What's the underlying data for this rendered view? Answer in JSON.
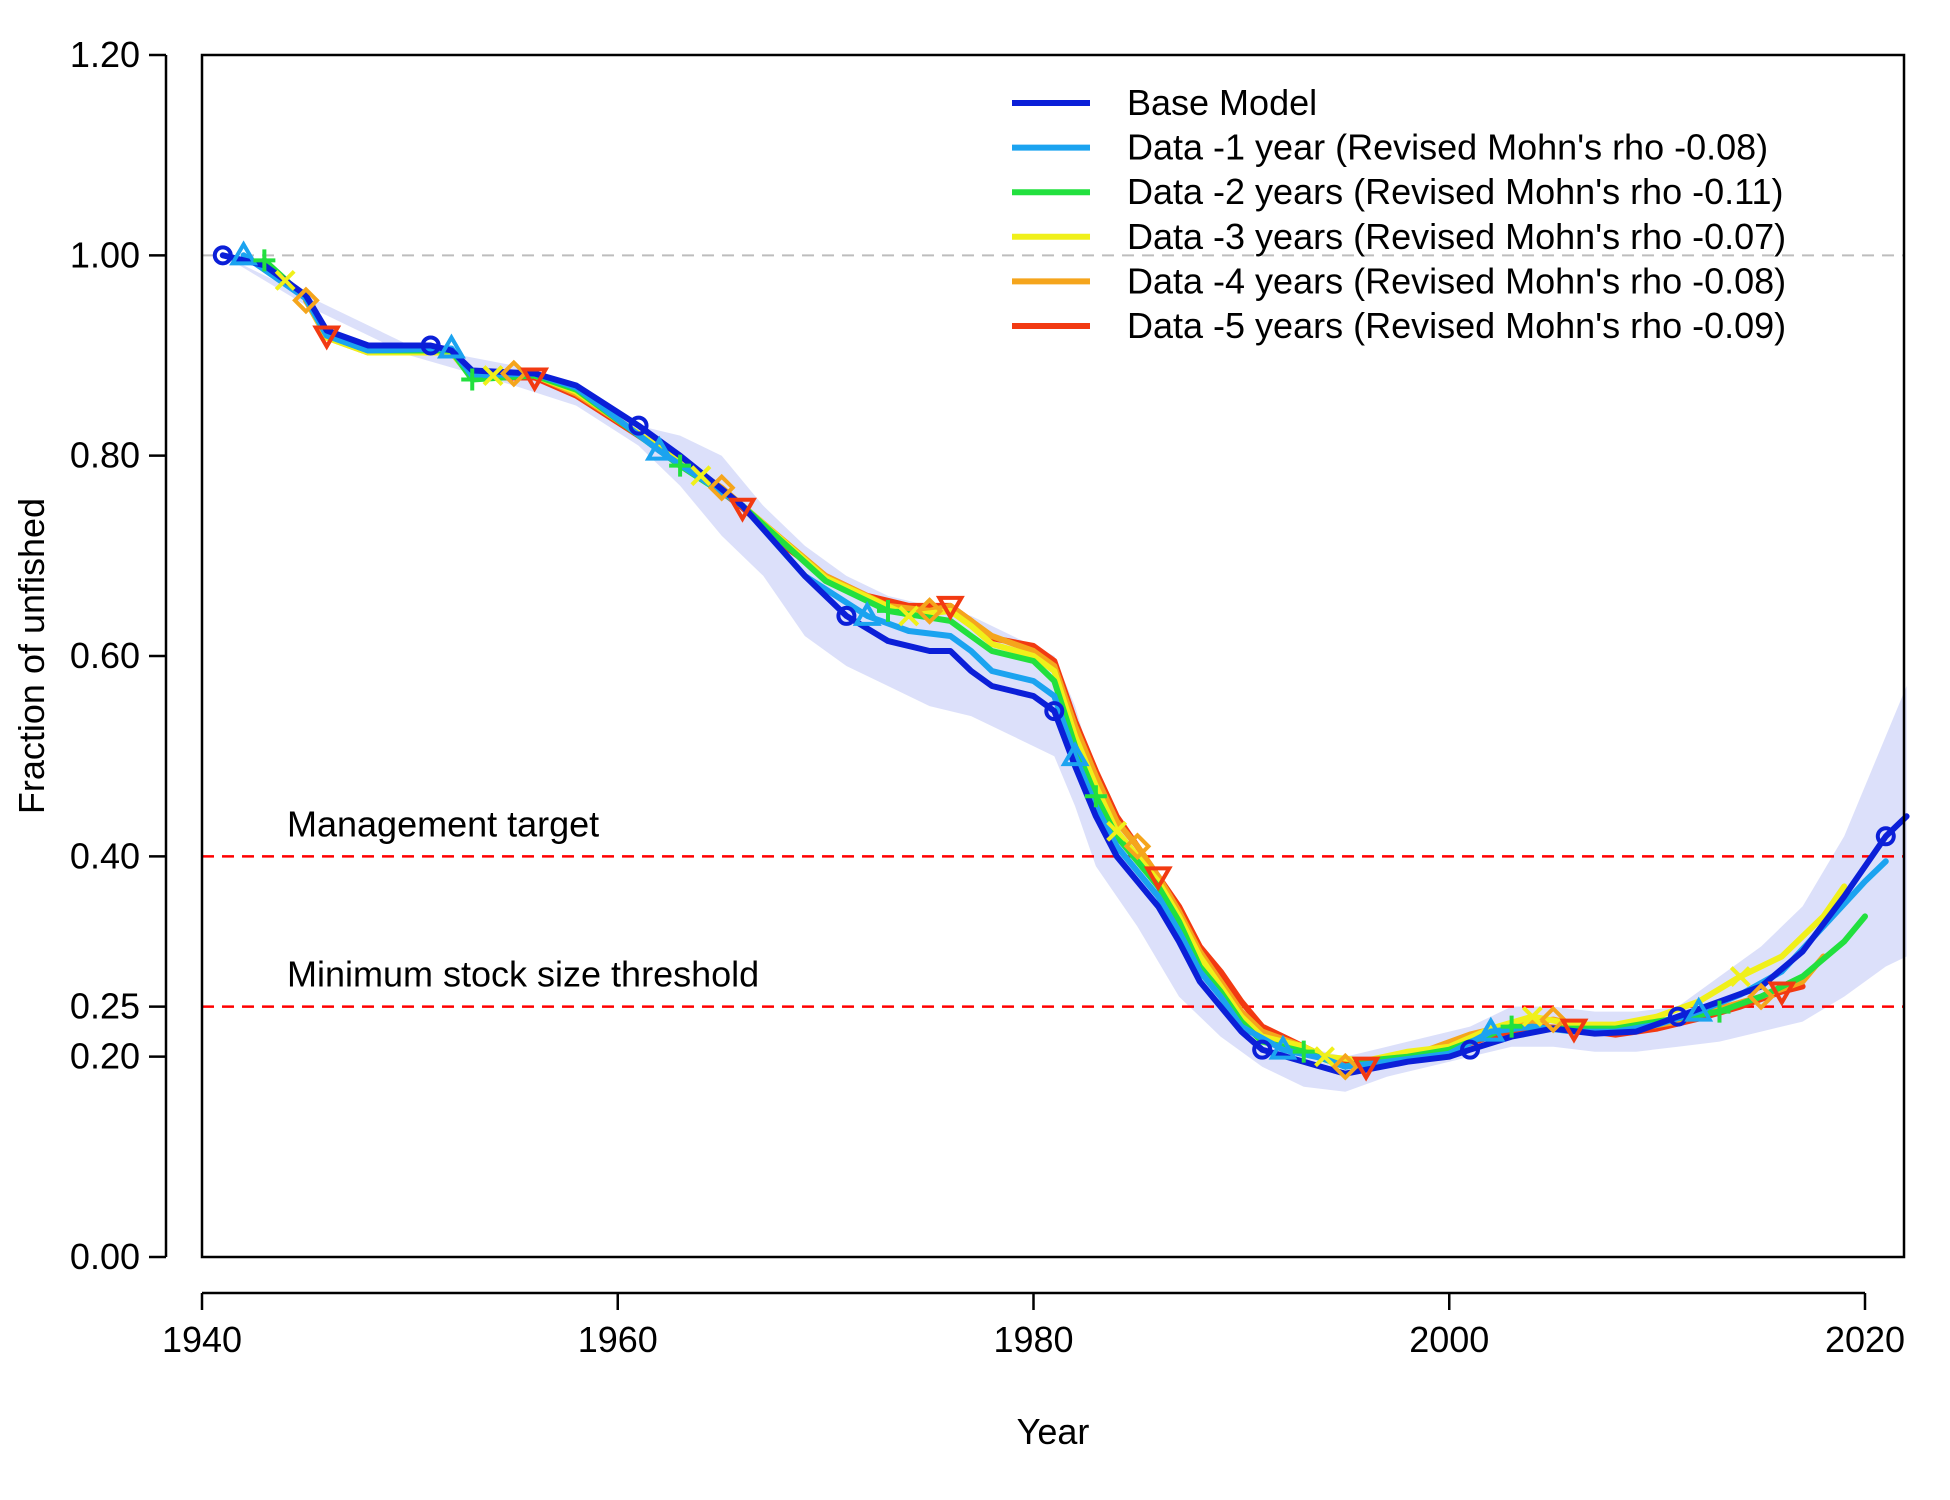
{
  "chart_data": {
    "type": "line",
    "xlabel": "Year",
    "ylabel": "Fraction of unfished",
    "xlim": [
      1940,
      2022
    ],
    "ylim": [
      0,
      1.2
    ],
    "x_ticks": [
      "1940",
      "1960",
      "1980",
      "2000",
      "2020"
    ],
    "y_ticks": [
      "0.00",
      "0.20",
      "0.25",
      "0.40",
      "0.60",
      "0.80",
      "1.00",
      "1.20"
    ],
    "legend_position": "top-right",
    "reference_lines": [
      {
        "value": 1.0,
        "label": "",
        "color": "#bdbdbd"
      },
      {
        "value": 0.4,
        "label": "Management target",
        "color": "#ff0000"
      },
      {
        "value": 0.25,
        "label": "Minimum stock size threshold",
        "color": "#ff0000"
      }
    ],
    "confidence_band": {
      "color": "#c5ccf7",
      "x": [
        1941,
        1945,
        1950,
        1955,
        1958,
        1961,
        1963,
        1965,
        1967,
        1969,
        1971,
        1973,
        1975,
        1977,
        1979,
        1981,
        1982,
        1983,
        1985,
        1987,
        1989,
        1991,
        1993,
        1995,
        1997,
        1999,
        2001,
        2003,
        2005,
        2007,
        2009,
        2011,
        2013,
        2015,
        2017,
        2019,
        2021,
        2022
      ],
      "upper": [
        1.0,
        0.96,
        0.91,
        0.89,
        0.87,
        0.83,
        0.82,
        0.8,
        0.75,
        0.71,
        0.68,
        0.66,
        0.65,
        0.64,
        0.62,
        0.6,
        0.55,
        0.48,
        0.41,
        0.33,
        0.27,
        0.225,
        0.21,
        0.2,
        0.21,
        0.22,
        0.23,
        0.25,
        0.25,
        0.245,
        0.245,
        0.25,
        0.28,
        0.31,
        0.35,
        0.42,
        0.52,
        0.57
      ],
      "lower": [
        1.0,
        0.95,
        0.9,
        0.87,
        0.85,
        0.81,
        0.77,
        0.72,
        0.68,
        0.62,
        0.59,
        0.57,
        0.55,
        0.54,
        0.52,
        0.5,
        0.45,
        0.39,
        0.33,
        0.26,
        0.22,
        0.19,
        0.17,
        0.165,
        0.18,
        0.19,
        0.2,
        0.21,
        0.21,
        0.205,
        0.205,
        0.21,
        0.215,
        0.225,
        0.235,
        0.26,
        0.29,
        0.3
      ]
    },
    "series": [
      {
        "name": "Base Model",
        "color": "#0b1fd8",
        "marker": "circle",
        "points": [
          [
            1941,
            1.0
          ],
          [
            1943,
            0.99
          ],
          [
            1945,
            0.96
          ],
          [
            1946,
            0.925
          ],
          [
            1948,
            0.91
          ],
          [
            1951,
            0.91
          ],
          [
            1952,
            0.905
          ],
          [
            1953,
            0.885
          ],
          [
            1956,
            0.882
          ],
          [
            1958,
            0.87
          ],
          [
            1961,
            0.83
          ],
          [
            1963,
            0.8
          ],
          [
            1966,
            0.75
          ],
          [
            1969,
            0.68
          ],
          [
            1971,
            0.64
          ],
          [
            1973,
            0.615
          ],
          [
            1975,
            0.605
          ],
          [
            1976,
            0.605
          ],
          [
            1977,
            0.585
          ],
          [
            1978,
            0.57
          ],
          [
            1980,
            0.56
          ],
          [
            1981,
            0.545
          ],
          [
            1982,
            0.49
          ],
          [
            1983,
            0.44
          ],
          [
            1984,
            0.4
          ],
          [
            1985,
            0.375
          ],
          [
            1986,
            0.35
          ],
          [
            1987,
            0.315
          ],
          [
            1988,
            0.275
          ],
          [
            1989,
            0.25
          ],
          [
            1990,
            0.225
          ],
          [
            1991,
            0.207
          ],
          [
            1993,
            0.195
          ],
          [
            1995,
            0.183
          ],
          [
            1996,
            0.187
          ],
          [
            1998,
            0.195
          ],
          [
            2000,
            0.2
          ],
          [
            2001,
            0.207
          ],
          [
            2003,
            0.22
          ],
          [
            2005,
            0.228
          ],
          [
            2007,
            0.223
          ],
          [
            2009,
            0.225
          ],
          [
            2011,
            0.24
          ],
          [
            2013,
            0.255
          ],
          [
            2015,
            0.27
          ],
          [
            2017,
            0.305
          ],
          [
            2019,
            0.36
          ],
          [
            2021,
            0.42
          ],
          [
            2022,
            0.44
          ]
        ]
      },
      {
        "name": "Data -1 year (Revised Mohn's rho -0.08)",
        "color": "#1ba3f0",
        "marker": "triangle-up",
        "points": [
          [
            1942,
            1.0
          ],
          [
            1945,
            0.957
          ],
          [
            1946,
            0.92
          ],
          [
            1948,
            0.905
          ],
          [
            1952,
            0.907
          ],
          [
            1953,
            0.88
          ],
          [
            1956,
            0.882
          ],
          [
            1958,
            0.868
          ],
          [
            1962,
            0.805
          ],
          [
            1966,
            0.75
          ],
          [
            1969,
            0.68
          ],
          [
            1972,
            0.64
          ],
          [
            1974,
            0.625
          ],
          [
            1976,
            0.62
          ],
          [
            1977,
            0.605
          ],
          [
            1978,
            0.585
          ],
          [
            1980,
            0.575
          ],
          [
            1981,
            0.56
          ],
          [
            1982,
            0.5
          ],
          [
            1983,
            0.45
          ],
          [
            1984,
            0.41
          ],
          [
            1985,
            0.385
          ],
          [
            1986,
            0.36
          ],
          [
            1987,
            0.325
          ],
          [
            1988,
            0.285
          ],
          [
            1989,
            0.26
          ],
          [
            1990,
            0.23
          ],
          [
            1992,
            0.207
          ],
          [
            1994,
            0.198
          ],
          [
            1995,
            0.19
          ],
          [
            1997,
            0.195
          ],
          [
            2000,
            0.203
          ],
          [
            2002,
            0.225
          ],
          [
            2004,
            0.23
          ],
          [
            2006,
            0.225
          ],
          [
            2008,
            0.225
          ],
          [
            2010,
            0.232
          ],
          [
            2012,
            0.245
          ],
          [
            2014,
            0.262
          ],
          [
            2016,
            0.285
          ],
          [
            2018,
            0.33
          ],
          [
            2020,
            0.375
          ],
          [
            2021,
            0.395
          ]
        ]
      },
      {
        "name": "Data -2 years (Revised Mohn's rho -0.11)",
        "color": "#22e03e",
        "marker": "plus",
        "points": [
          [
            1943,
            0.995
          ],
          [
            1945,
            0.957
          ],
          [
            1946,
            0.92
          ],
          [
            1948,
            0.905
          ],
          [
            1952,
            0.905
          ],
          [
            1953,
            0.876
          ],
          [
            1956,
            0.88
          ],
          [
            1958,
            0.866
          ],
          [
            1963,
            0.79
          ],
          [
            1966,
            0.75
          ],
          [
            1970,
            0.675
          ],
          [
            1973,
            0.645
          ],
          [
            1976,
            0.635
          ],
          [
            1977,
            0.62
          ],
          [
            1978,
            0.605
          ],
          [
            1980,
            0.595
          ],
          [
            1981,
            0.575
          ],
          [
            1982,
            0.51
          ],
          [
            1983,
            0.46
          ],
          [
            1984,
            0.42
          ],
          [
            1986,
            0.37
          ],
          [
            1987,
            0.335
          ],
          [
            1988,
            0.29
          ],
          [
            1989,
            0.265
          ],
          [
            1990,
            0.235
          ],
          [
            1991,
            0.215
          ],
          [
            1993,
            0.205
          ],
          [
            1995,
            0.19
          ],
          [
            1996,
            0.196
          ],
          [
            1998,
            0.2
          ],
          [
            2000,
            0.207
          ],
          [
            2003,
            0.23
          ],
          [
            2005,
            0.228
          ],
          [
            2008,
            0.228
          ],
          [
            2010,
            0.235
          ],
          [
            2013,
            0.245
          ],
          [
            2015,
            0.26
          ],
          [
            2017,
            0.28
          ],
          [
            2019,
            0.315
          ],
          [
            2020,
            0.34
          ]
        ]
      },
      {
        "name": "Data -3 years (Revised Mohn's rho -0.07)",
        "color": "#f0f01a",
        "marker": "x",
        "points": [
          [
            1944,
            0.975
          ],
          [
            1945,
            0.957
          ],
          [
            1946,
            0.918
          ],
          [
            1948,
            0.903
          ],
          [
            1952,
            0.903
          ],
          [
            1953,
            0.878
          ],
          [
            1954,
            0.88
          ],
          [
            1956,
            0.88
          ],
          [
            1958,
            0.864
          ],
          [
            1964,
            0.78
          ],
          [
            1966,
            0.75
          ],
          [
            1970,
            0.678
          ],
          [
            1974,
            0.64
          ],
          [
            1976,
            0.645
          ],
          [
            1977,
            0.63
          ],
          [
            1978,
            0.612
          ],
          [
            1980,
            0.6
          ],
          [
            1981,
            0.585
          ],
          [
            1982,
            0.52
          ],
          [
            1983,
            0.47
          ],
          [
            1984,
            0.425
          ],
          [
            1986,
            0.375
          ],
          [
            1987,
            0.34
          ],
          [
            1988,
            0.3
          ],
          [
            1989,
            0.27
          ],
          [
            1990,
            0.24
          ],
          [
            1991,
            0.22
          ],
          [
            1993,
            0.21
          ],
          [
            1994,
            0.2
          ],
          [
            1996,
            0.196
          ],
          [
            1998,
            0.205
          ],
          [
            2000,
            0.21
          ],
          [
            2002,
            0.228
          ],
          [
            2004,
            0.24
          ],
          [
            2006,
            0.232
          ],
          [
            2008,
            0.232
          ],
          [
            2010,
            0.24
          ],
          [
            2012,
            0.255
          ],
          [
            2014,
            0.28
          ],
          [
            2016,
            0.3
          ],
          [
            2018,
            0.34
          ],
          [
            2019,
            0.37
          ]
        ]
      },
      {
        "name": "Data -4 years (Revised Mohn's rho -0.08)",
        "color": "#f5a51c",
        "marker": "diamond",
        "points": [
          [
            1945,
            0.955
          ],
          [
            1946,
            0.918
          ],
          [
            1948,
            0.903
          ],
          [
            1952,
            0.903
          ],
          [
            1953,
            0.878
          ],
          [
            1955,
            0.882
          ],
          [
            1956,
            0.88
          ],
          [
            1958,
            0.862
          ],
          [
            1965,
            0.768
          ],
          [
            1966,
            0.75
          ],
          [
            1970,
            0.68
          ],
          [
            1973,
            0.65
          ],
          [
            1975,
            0.645
          ],
          [
            1976,
            0.65
          ],
          [
            1977,
            0.635
          ],
          [
            1978,
            0.62
          ],
          [
            1980,
            0.605
          ],
          [
            1981,
            0.59
          ],
          [
            1982,
            0.53
          ],
          [
            1983,
            0.48
          ],
          [
            1984,
            0.435
          ],
          [
            1985,
            0.41
          ],
          [
            1986,
            0.38
          ],
          [
            1987,
            0.345
          ],
          [
            1988,
            0.305
          ],
          [
            1989,
            0.275
          ],
          [
            1990,
            0.245
          ],
          [
            1991,
            0.225
          ],
          [
            1993,
            0.21
          ],
          [
            1995,
            0.19
          ],
          [
            1997,
            0.2
          ],
          [
            1999,
            0.207
          ],
          [
            2001,
            0.222
          ],
          [
            2003,
            0.232
          ],
          [
            2005,
            0.237
          ],
          [
            2007,
            0.228
          ],
          [
            2009,
            0.228
          ],
          [
            2011,
            0.235
          ],
          [
            2013,
            0.248
          ],
          [
            2015,
            0.26
          ],
          [
            2017,
            0.275
          ],
          [
            2018,
            0.3
          ]
        ]
      },
      {
        "name": "Data -5 years (Revised Mohn's rho -0.09)",
        "color": "#f23a12",
        "marker": "triangle-down",
        "points": [
          [
            1946,
            0.92
          ],
          [
            1948,
            0.903
          ],
          [
            1952,
            0.903
          ],
          [
            1953,
            0.878
          ],
          [
            1956,
            0.878
          ],
          [
            1958,
            0.86
          ],
          [
            1961,
            0.82
          ],
          [
            1964,
            0.78
          ],
          [
            1966,
            0.748
          ],
          [
            1968,
            0.71
          ],
          [
            1970,
            0.68
          ],
          [
            1972,
            0.66
          ],
          [
            1974,
            0.65
          ],
          [
            1976,
            0.65
          ],
          [
            1977,
            0.635
          ],
          [
            1978,
            0.618
          ],
          [
            1980,
            0.61
          ],
          [
            1981,
            0.595
          ],
          [
            1982,
            0.535
          ],
          [
            1983,
            0.485
          ],
          [
            1984,
            0.44
          ],
          [
            1985,
            0.41
          ],
          [
            1986,
            0.38
          ],
          [
            1987,
            0.35
          ],
          [
            1988,
            0.31
          ],
          [
            1989,
            0.285
          ],
          [
            1990,
            0.255
          ],
          [
            1991,
            0.23
          ],
          [
            1993,
            0.21
          ],
          [
            1994,
            0.2
          ],
          [
            1996,
            0.19
          ],
          [
            1998,
            0.2
          ],
          [
            2000,
            0.207
          ],
          [
            2002,
            0.22
          ],
          [
            2004,
            0.23
          ],
          [
            2006,
            0.228
          ],
          [
            2008,
            0.222
          ],
          [
            2010,
            0.228
          ],
          [
            2012,
            0.238
          ],
          [
            2014,
            0.25
          ],
          [
            2016,
            0.265
          ],
          [
            2017,
            0.27
          ]
        ]
      }
    ]
  }
}
